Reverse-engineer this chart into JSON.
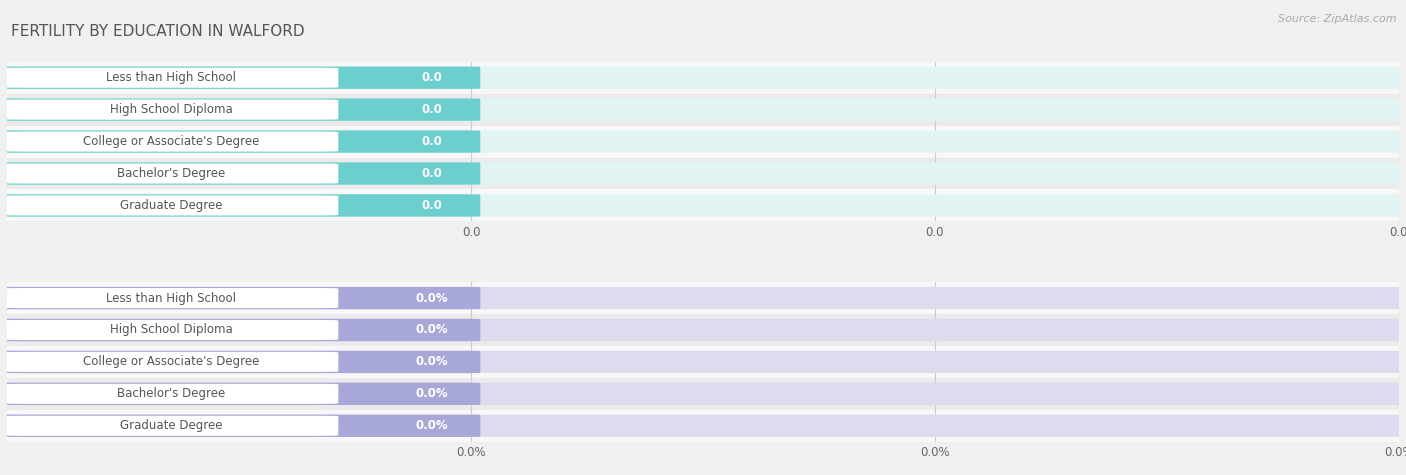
{
  "title": "FERTILITY BY EDUCATION IN WALFORD",
  "source": "Source: ZipAtlas.com",
  "categories": [
    "Less than High School",
    "High School Diploma",
    "College or Associate's Degree",
    "Bachelor's Degree",
    "Graduate Degree"
  ],
  "top_values": [
    0.0,
    0.0,
    0.0,
    0.0,
    0.0
  ],
  "bottom_values": [
    0.0,
    0.0,
    0.0,
    0.0,
    0.0
  ],
  "top_bar_color": "#6dcece",
  "top_bar_bg": "#e2f4f4",
  "bottom_bar_color": "#a8a8d8",
  "bottom_bar_bg": "#dcdcee",
  "label_color": "#555555",
  "value_color_top": "#ffffff",
  "value_color_bottom": "#ffffff",
  "background_color": "#f0f0f0",
  "row_bg_even": "#f8f8f8",
  "row_bg_odd": "#ebebeb",
  "title_color": "#555555",
  "source_color": "#aaaaaa",
  "title_fontsize": 11,
  "label_fontsize": 8.5,
  "value_fontsize": 8.5,
  "tick_fontsize": 8.5,
  "grid_color": "#cccccc",
  "pill_color": "#ffffff",
  "pill_border_color": "none"
}
